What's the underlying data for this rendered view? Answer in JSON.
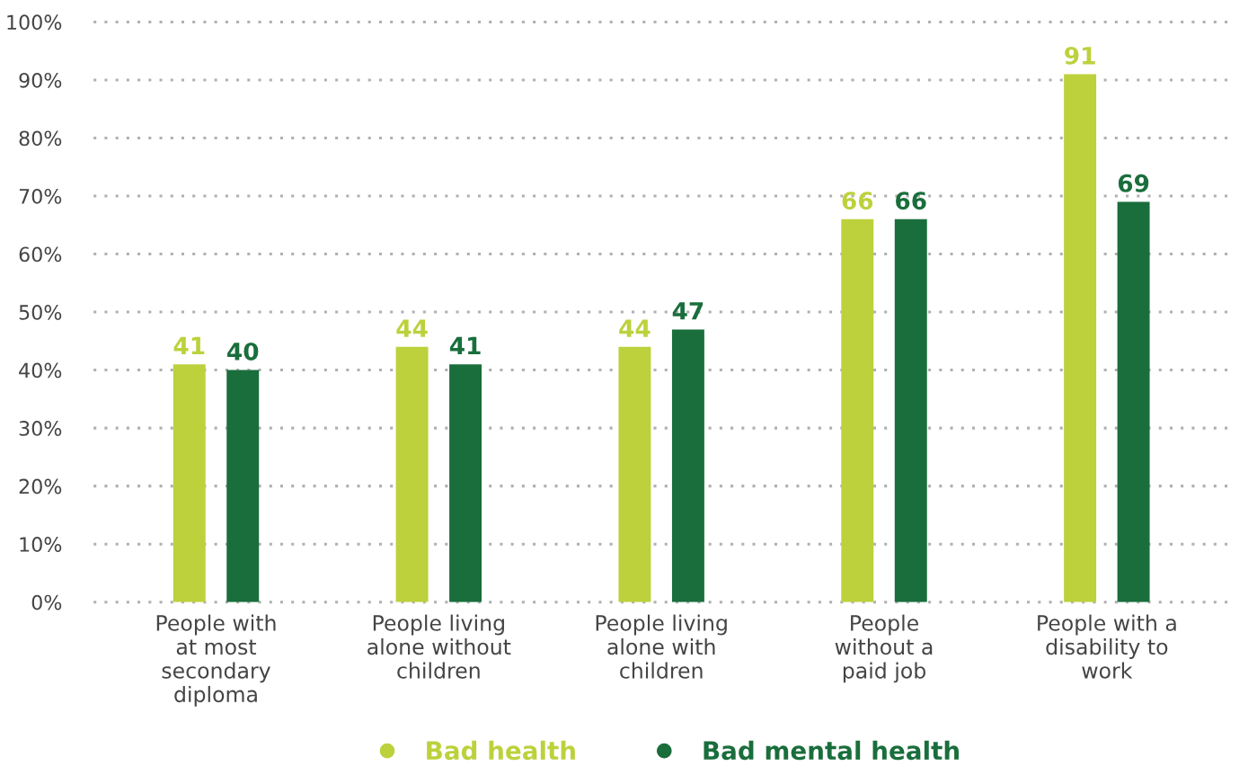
{
  "chart_data": {
    "type": "bar",
    "categories": [
      "People with\nat most\nsecondary\ndiploma",
      "People living\nalone without\nchildren",
      "People living\nalone with\nchildren",
      "People\nwithout a\npaid job",
      "People with a\ndisability to\nwork"
    ],
    "series": [
      {
        "name": "Bad health",
        "color": "#bdd13c",
        "values": [
          41,
          44,
          44,
          66,
          91
        ]
      },
      {
        "name": "Bad mental health",
        "color": "#1a6e3c",
        "values": [
          40,
          41,
          47,
          66,
          69
        ]
      }
    ],
    "ylim": [
      0,
      100
    ],
    "yticks": [
      {
        "value": 0,
        "label": "0%"
      },
      {
        "value": 10,
        "label": "10%"
      },
      {
        "value": 20,
        "label": "20%"
      },
      {
        "value": 30,
        "label": "30%"
      },
      {
        "value": 40,
        "label": "40%"
      },
      {
        "value": 50,
        "label": "50%"
      },
      {
        "value": 60,
        "label": "60%"
      },
      {
        "value": 70,
        "label": "70%"
      },
      {
        "value": 80,
        "label": "80%"
      },
      {
        "value": 90,
        "label": "90%"
      },
      {
        "value": 100,
        "label": "100%"
      }
    ],
    "grid": "y",
    "data_labels": true,
    "legend": "bottom"
  }
}
